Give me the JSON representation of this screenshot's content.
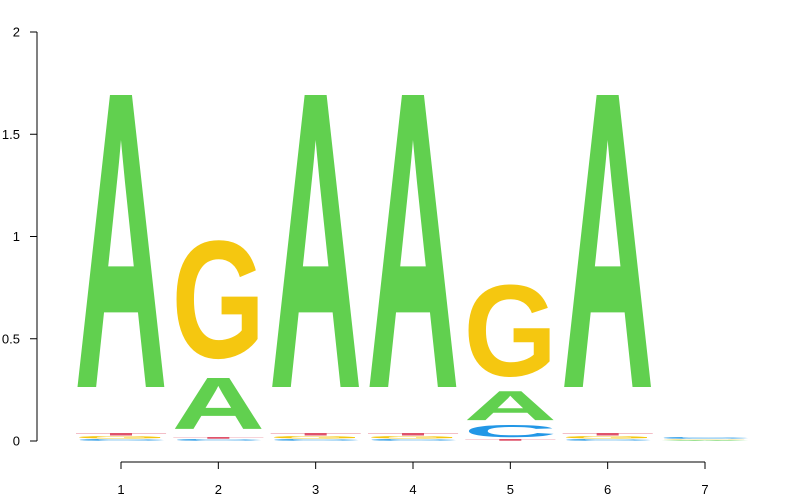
{
  "chart_data": {
    "type": "sequence-logo",
    "title": "",
    "xlabel": "",
    "ylabel": "",
    "ylim": [
      0,
      2
    ],
    "y_ticks": [
      0,
      0.5,
      1,
      1.5,
      2
    ],
    "y_tick_labels": [
      "0",
      "0.5",
      "1",
      "1.5",
      "2"
    ],
    "positions": [
      1,
      2,
      3,
      4,
      5,
      6,
      7
    ],
    "x_tick_labels": [
      "1",
      "2",
      "3",
      "4",
      "5",
      "6",
      "7"
    ],
    "colors": {
      "A": "#61d04f",
      "C": "#2297e6",
      "G": "#f5c710",
      "T": "#df536b"
    },
    "stacks": [
      {
        "position": 1,
        "letters": [
          {
            "base": "C",
            "height": 0.01
          },
          {
            "base": "G",
            "height": 0.015
          },
          {
            "base": "T",
            "height": 0.015
          },
          {
            "base": "A",
            "height": 1.72
          }
        ]
      },
      {
        "position": 2,
        "letters": [
          {
            "base": "C",
            "height": 0.01
          },
          {
            "base": "T",
            "height": 0.01
          },
          {
            "base": "A",
            "height": 0.3
          },
          {
            "base": "G",
            "height": 0.68
          }
        ]
      },
      {
        "position": 3,
        "letters": [
          {
            "base": "C",
            "height": 0.01
          },
          {
            "base": "G",
            "height": 0.015
          },
          {
            "base": "T",
            "height": 0.015
          },
          {
            "base": "A",
            "height": 1.72
          }
        ]
      },
      {
        "position": 4,
        "letters": [
          {
            "base": "C",
            "height": 0.01
          },
          {
            "base": "G",
            "height": 0.015
          },
          {
            "base": "T",
            "height": 0.015
          },
          {
            "base": "A",
            "height": 1.72
          }
        ]
      },
      {
        "position": 5,
        "letters": [
          {
            "base": "T",
            "height": 0.01
          },
          {
            "base": "C",
            "height": 0.07
          },
          {
            "base": "A",
            "height": 0.17
          },
          {
            "base": "G",
            "height": 0.53
          }
        ]
      },
      {
        "position": 6,
        "letters": [
          {
            "base": "C",
            "height": 0.01
          },
          {
            "base": "G",
            "height": 0.015
          },
          {
            "base": "T",
            "height": 0.015
          },
          {
            "base": "A",
            "height": 1.72
          }
        ]
      },
      {
        "position": 7,
        "letters": [
          {
            "base": "A",
            "height": 0.005
          },
          {
            "base": "G",
            "height": 0.005
          },
          {
            "base": "C",
            "height": 0.01
          }
        ]
      }
    ]
  }
}
